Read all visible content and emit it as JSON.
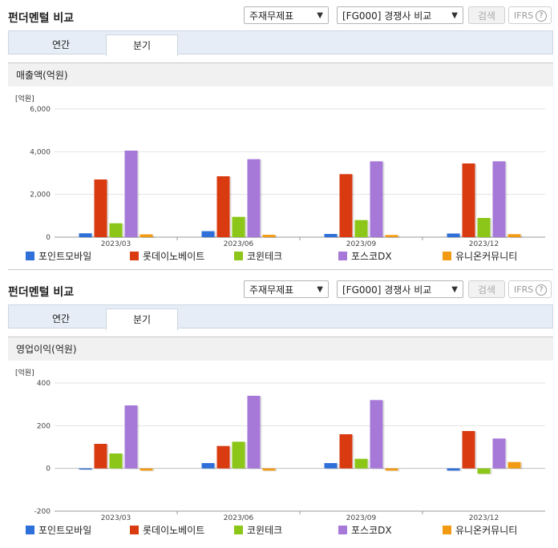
{
  "colors": {
    "series": [
      "#2e6fd9",
      "#d93a10",
      "#8bc618",
      "#a679d8",
      "#f29a12"
    ],
    "grid": "#e2e2e2",
    "axis": "#999999"
  },
  "panels": [
    {
      "title": "펀더멘털 비교",
      "select1": "주재무제표",
      "select2": "[FG000] 경쟁사 비교",
      "search_label": "검색",
      "ifrs_label": "IFRS",
      "help_icon_text": "?",
      "tabs": [
        {
          "label": "연간"
        },
        {
          "label": "분기"
        }
      ],
      "active_tab": "분기",
      "subtitle": "매출액(억원)"
    },
    {
      "title": "펀더멘털 비교",
      "select1": "주재무제표",
      "select2": "[FG000] 경쟁사 비교",
      "search_label": "검색",
      "ifrs_label": "IFRS",
      "help_icon_text": "?",
      "tabs": [
        {
          "label": "연간"
        },
        {
          "label": "분기"
        }
      ],
      "active_tab": "분기",
      "subtitle": "영업이익(억원)"
    }
  ],
  "chart_data": [
    {
      "type": "bar",
      "unit_label": "[억원]",
      "categories": [
        "2023/03",
        "2023/06",
        "2023/09",
        "2023/12"
      ],
      "ylim": [
        0,
        6000
      ],
      "yticks": [
        0,
        2000,
        4000,
        6000
      ],
      "ytick_labels": [
        "0",
        "2,000",
        "4,000",
        "6,000"
      ],
      "grid": true,
      "legend": "bottom",
      "series": [
        {
          "name": "포인트모바일",
          "values": [
            180,
            280,
            150,
            170
          ]
        },
        {
          "name": "롯데이노베이트",
          "values": [
            2700,
            2850,
            2950,
            3450
          ]
        },
        {
          "name": "코윈테크",
          "values": [
            650,
            950,
            800,
            900
          ]
        },
        {
          "name": "포스코DX",
          "values": [
            4050,
            3650,
            3550,
            3550
          ]
        },
        {
          "name": "유니온커뮤니티",
          "values": [
            130,
            110,
            100,
            140
          ]
        }
      ]
    },
    {
      "type": "bar",
      "unit_label": "[억원]",
      "categories": [
        "2023/03",
        "2023/06",
        "2023/09",
        "2023/12"
      ],
      "ylim": [
        -200,
        400
      ],
      "yticks": [
        -200,
        0,
        200,
        400
      ],
      "ytick_labels": [
        "-200",
        "0",
        "200",
        "400"
      ],
      "grid": true,
      "legend": "bottom",
      "series": [
        {
          "name": "포인트모바일",
          "values": [
            -5,
            25,
            25,
            -10
          ]
        },
        {
          "name": "롯데이노베이트",
          "values": [
            115,
            105,
            160,
            175
          ]
        },
        {
          "name": "코윈테크",
          "values": [
            70,
            125,
            45,
            -25
          ]
        },
        {
          "name": "포스코DX",
          "values": [
            295,
            340,
            320,
            140
          ]
        },
        {
          "name": "유니온커뮤니티",
          "values": [
            -10,
            -10,
            -10,
            30
          ]
        }
      ]
    }
  ]
}
